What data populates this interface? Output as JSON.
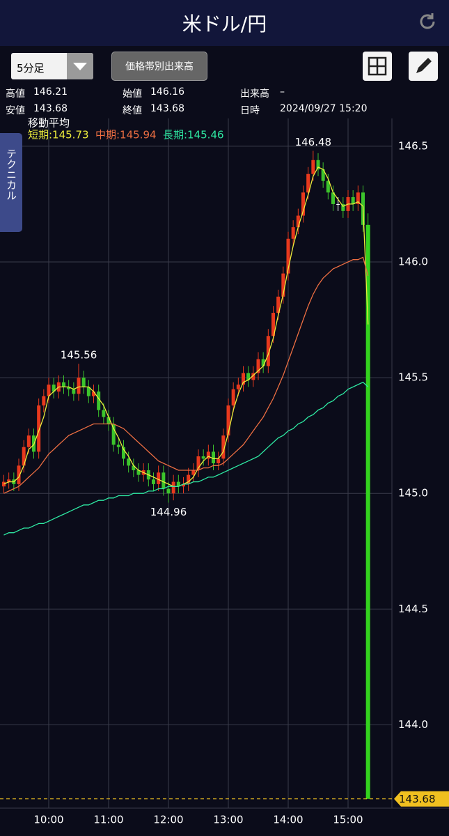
{
  "header": {
    "title": "米ドル/円"
  },
  "toolbar": {
    "timeframe": "5分足",
    "button": "価格帯別出来高"
  },
  "info": [
    {
      "label": "高値",
      "value": "146.21"
    },
    {
      "label": "始値",
      "value": "146.16"
    },
    {
      "label": "出来高",
      "value": "–"
    },
    {
      "label": "安値",
      "value": "143.68"
    },
    {
      "label": "終値",
      "value": "143.68"
    },
    {
      "label": "日時",
      "value": "2024/09/27 15:20"
    }
  ],
  "side_tab": "テクニカル",
  "chart_data": {
    "type": "candlestick",
    "categories": [
      null,
      null,
      null,
      null,
      null,
      null,
      null,
      null,
      null,
      "10:00",
      null,
      null,
      null,
      null,
      null,
      null,
      null,
      null,
      null,
      null,
      null,
      "11:00",
      null,
      null,
      null,
      null,
      null,
      null,
      null,
      null,
      null,
      null,
      null,
      "12:00",
      null,
      null,
      null,
      null,
      null,
      null,
      null,
      null,
      null,
      null,
      null,
      "13:00",
      null,
      null,
      null,
      null,
      null,
      null,
      null,
      null,
      null,
      null,
      null,
      "14:00",
      null,
      null,
      null,
      null,
      null,
      null,
      null,
      null,
      null,
      null,
      null,
      "15:00",
      null,
      null,
      null,
      null
    ],
    "open": [
      145.03,
      145.05,
      145.06,
      145.04,
      145.12,
      145.2,
      145.25,
      145.18,
      145.38,
      145.42,
      145.47,
      145.44,
      145.48,
      145.46,
      145.45,
      145.43,
      145.5,
      145.46,
      145.42,
      145.44,
      145.36,
      145.33,
      145.3,
      145.21,
      145.2,
      145.15,
      145.12,
      145.1,
      145.08,
      145.1,
      145.06,
      145.04,
      145.09,
      145.02,
      145.0,
      145.05,
      145.03,
      145.04,
      145.08,
      145.1,
      145.16,
      145.15,
      145.18,
      145.13,
      145.15,
      145.25,
      145.38,
      145.45,
      145.47,
      145.52,
      145.49,
      145.52,
      145.58,
      145.55,
      145.68,
      145.78,
      145.85,
      145.95,
      146.1,
      146.15,
      146.2,
      146.3,
      146.38,
      146.44,
      146.4,
      146.35,
      146.3,
      146.25,
      146.25,
      146.22,
      146.28,
      146.25,
      146.3,
      146.16
    ],
    "high": [
      145.08,
      145.09,
      145.09,
      145.15,
      145.23,
      145.28,
      145.28,
      145.41,
      145.45,
      145.5,
      145.5,
      145.51,
      145.51,
      145.49,
      145.48,
      145.56,
      145.53,
      145.49,
      145.47,
      145.47,
      145.39,
      145.36,
      145.33,
      145.24,
      145.23,
      145.18,
      145.15,
      145.13,
      145.13,
      145.13,
      145.09,
      145.12,
      145.12,
      145.05,
      145.08,
      145.08,
      145.07,
      145.11,
      145.13,
      145.19,
      145.19,
      145.21,
      145.21,
      145.18,
      145.28,
      145.41,
      145.48,
      145.5,
      145.55,
      145.55,
      145.55,
      145.61,
      145.61,
      145.71,
      145.81,
      145.88,
      145.98,
      146.13,
      146.18,
      146.23,
      146.33,
      146.41,
      146.48,
      146.47,
      146.43,
      146.38,
      146.33,
      146.28,
      146.28,
      146.31,
      146.31,
      146.33,
      146.33,
      146.21
    ],
    "low": [
      145.0,
      145.02,
      145.01,
      145.01,
      145.09,
      145.17,
      145.15,
      145.15,
      145.35,
      145.39,
      145.41,
      145.41,
      145.43,
      145.42,
      145.4,
      145.4,
      145.43,
      145.39,
      145.39,
      145.33,
      145.3,
      145.27,
      145.18,
      145.17,
      145.12,
      145.09,
      145.07,
      145.05,
      145.05,
      145.03,
      145.01,
      145.01,
      144.99,
      144.96,
      144.97,
      145.0,
      145.0,
      145.01,
      145.05,
      145.07,
      145.12,
      145.12,
      145.1,
      145.1,
      145.12,
      145.22,
      145.35,
      145.42,
      145.44,
      145.46,
      145.46,
      145.49,
      145.52,
      145.52,
      145.65,
      145.75,
      145.82,
      145.92,
      146.07,
      146.12,
      146.17,
      146.27,
      146.35,
      146.37,
      146.32,
      146.27,
      146.22,
      146.22,
      146.19,
      146.19,
      146.22,
      146.22,
      146.13,
      143.68
    ],
    "close": [
      145.05,
      145.06,
      145.04,
      145.12,
      145.2,
      145.25,
      145.18,
      145.38,
      145.42,
      145.47,
      145.44,
      145.48,
      145.46,
      145.45,
      145.43,
      145.5,
      145.46,
      145.42,
      145.44,
      145.36,
      145.33,
      145.3,
      145.21,
      145.2,
      145.15,
      145.12,
      145.1,
      145.08,
      145.1,
      145.06,
      145.04,
      145.09,
      145.02,
      145.0,
      145.05,
      145.03,
      145.04,
      145.08,
      145.1,
      145.16,
      145.15,
      145.18,
      145.13,
      145.15,
      145.25,
      145.38,
      145.45,
      145.47,
      145.52,
      145.49,
      145.52,
      145.58,
      145.55,
      145.68,
      145.78,
      145.85,
      145.95,
      146.1,
      146.15,
      146.2,
      146.3,
      146.38,
      146.44,
      146.4,
      146.35,
      146.3,
      146.25,
      146.25,
      146.22,
      146.28,
      146.25,
      146.3,
      146.16,
      143.68
    ],
    "up_color": "#e8391d",
    "down_color": "#3cc42c",
    "last_color": "#33d21e",
    "series": [
      {
        "color": "#ecec3c",
        "values": [
          145.04,
          145.05,
          145.05,
          145.07,
          145.12,
          145.19,
          145.21,
          145.27,
          145.33,
          145.42,
          145.44,
          145.46,
          145.46,
          145.46,
          145.45,
          145.46,
          145.46,
          145.46,
          145.44,
          145.41,
          145.38,
          145.33,
          145.28,
          145.24,
          145.19,
          145.16,
          145.12,
          145.1,
          145.09,
          145.08,
          145.07,
          145.06,
          145.05,
          145.04,
          145.03,
          145.03,
          145.04,
          145.05,
          145.07,
          145.11,
          145.14,
          145.16,
          145.15,
          145.15,
          145.18,
          145.26,
          145.36,
          145.43,
          145.48,
          145.49,
          145.51,
          145.53,
          145.55,
          145.6,
          145.67,
          145.77,
          145.86,
          145.97,
          146.07,
          146.15,
          146.22,
          146.29,
          146.37,
          146.41,
          146.4,
          146.36,
          146.3,
          146.27,
          146.24,
          146.25,
          146.25,
          146.26,
          146.24,
          145.73
        ]
      },
      {
        "color": "#ec6e42",
        "values": [
          145.0,
          145.01,
          145.02,
          145.03,
          145.05,
          145.07,
          145.09,
          145.11,
          145.14,
          145.17,
          145.19,
          145.21,
          145.23,
          145.25,
          145.26,
          145.27,
          145.28,
          145.29,
          145.3,
          145.3,
          145.3,
          145.3,
          145.3,
          145.29,
          145.28,
          145.26,
          145.24,
          145.22,
          145.2,
          145.18,
          145.16,
          145.14,
          145.13,
          145.12,
          145.11,
          145.1,
          145.1,
          145.1,
          145.1,
          145.1,
          145.11,
          145.11,
          145.12,
          145.12,
          145.13,
          145.15,
          145.17,
          145.19,
          145.21,
          145.24,
          145.27,
          145.3,
          145.33,
          145.37,
          145.41,
          145.46,
          145.51,
          145.57,
          145.63,
          145.69,
          145.75,
          145.81,
          145.86,
          145.9,
          145.93,
          145.95,
          145.97,
          145.98,
          145.99,
          146.0,
          146.01,
          146.01,
          146.02,
          145.94
        ]
      },
      {
        "color": "#2ee8a2",
        "values": [
          144.82,
          144.83,
          144.83,
          144.84,
          144.85,
          144.85,
          144.86,
          144.87,
          144.87,
          144.88,
          144.89,
          144.9,
          144.91,
          144.92,
          144.93,
          144.94,
          144.95,
          144.95,
          144.96,
          144.97,
          144.97,
          144.98,
          144.98,
          144.99,
          144.99,
          144.99,
          145.0,
          145.0,
          145.0,
          145.01,
          145.01,
          145.02,
          145.02,
          145.03,
          145.03,
          145.03,
          145.04,
          145.04,
          145.05,
          145.05,
          145.06,
          145.07,
          145.07,
          145.08,
          145.09,
          145.1,
          145.11,
          145.12,
          145.13,
          145.14,
          145.15,
          145.16,
          145.18,
          145.2,
          145.22,
          145.24,
          145.25,
          145.27,
          145.28,
          145.3,
          145.31,
          145.33,
          145.34,
          145.36,
          145.37,
          145.39,
          145.4,
          145.42,
          145.43,
          145.45,
          145.46,
          145.47,
          145.48,
          145.46
        ]
      }
    ],
    "legend_title": "移動平均",
    "legend_labels": [
      "短期:145.73",
      "中期:145.94",
      "長期:145.46"
    ],
    "ylim": [
      143.64,
      146.62
    ],
    "yticks": [
      {
        "value": 144,
        "label": "144.0"
      },
      144.5,
      {
        "value": 145,
        "label": "145.0"
      },
      145.5,
      {
        "value": 146,
        "label": "146.0"
      },
      146.5
    ],
    "grid": true,
    "price_line_color": "#f0c020"
  }
}
